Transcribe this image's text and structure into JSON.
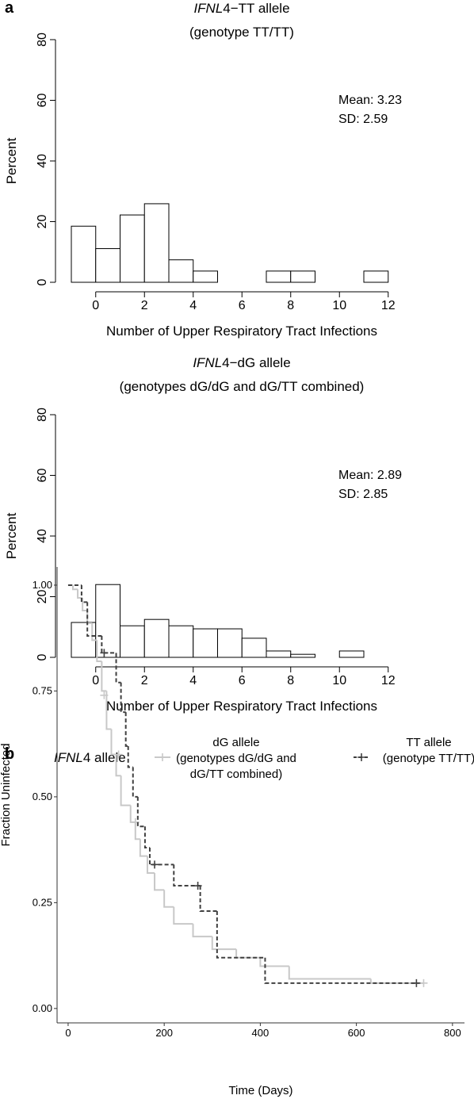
{
  "chart_data": [
    {
      "type": "histogram",
      "panel_label": "a",
      "title_italic": "IFNL",
      "title": "4−TT allele",
      "subtitle": "(genotype TT/TT)",
      "xlabel": "Number of Upper Respiratory Tract Infections",
      "ylabel": "Percent",
      "bins": [
        -1,
        0,
        1,
        2,
        3,
        4,
        5,
        6,
        7,
        8,
        9,
        10,
        11,
        12
      ],
      "values": [
        18.5,
        11.1,
        22.2,
        25.9,
        7.4,
        3.7,
        0,
        0,
        3.7,
        3.7,
        0,
        0,
        3.7
      ],
      "xlim": [
        -1,
        13
      ],
      "xticks": [
        0,
        2,
        4,
        6,
        8,
        10,
        12
      ],
      "ylim": [
        0,
        80
      ],
      "yticks": [
        0,
        20,
        40,
        60,
        80
      ],
      "annotations": [
        "Mean: 3.23",
        "SD: 2.59"
      ],
      "color": "#ffffff"
    },
    {
      "type": "histogram",
      "title_italic": "IFNL",
      "title": "4−dG allele",
      "subtitle": "(genotypes dG/dG and dG/TT combined)",
      "xlabel": "Number of Upper Respiratory Tract Infections",
      "ylabel": "Percent",
      "bins": [
        -1,
        0,
        1,
        2,
        3,
        4,
        5,
        6,
        7,
        8,
        9,
        10,
        11,
        12
      ],
      "values": [
        11.5,
        24.0,
        10.4,
        12.5,
        10.4,
        9.4,
        9.4,
        6.3,
        2.1,
        1.0,
        0,
        2.1,
        0
      ],
      "xlim": [
        -1,
        13
      ],
      "xticks": [
        0,
        2,
        4,
        6,
        8,
        10,
        12
      ],
      "ylim": [
        0,
        80
      ],
      "yticks": [
        0,
        20,
        40,
        60,
        80
      ],
      "annotations": [
        "Mean: 2.89",
        "SD: 2.85"
      ],
      "color": "#ffffff"
    },
    {
      "type": "step",
      "panel_label": "b",
      "legend_title_italic": "IFNL",
      "legend_title": "4 allele",
      "xlabel": "Time (Days)",
      "ylabel": "Fraction Uninfected",
      "xlim": [
        -23,
        825
      ],
      "xticks": [
        0,
        200,
        400,
        600,
        800
      ],
      "ylim": [
        -0.034,
        1.043
      ],
      "yticks": [
        {
          "value": 0,
          "label": "0.00"
        },
        {
          "value": 0.25,
          "label": "0.25"
        },
        {
          "value": 0.5,
          "label": "0.50"
        },
        {
          "value": 0.75,
          "label": "0.75"
        },
        {
          "value": 1,
          "label": "1.00"
        }
      ],
      "series": [
        {
          "name": [
            "dG allele",
            "(genotypes dG/dG and",
            "dG/TT combined)"
          ],
          "color": "#c8c8c8",
          "dashed": false,
          "x": [
            0,
            10,
            20,
            30,
            40,
            50,
            60,
            70,
            80,
            90,
            100,
            110,
            130,
            140,
            150,
            165,
            180,
            200,
            220,
            260,
            300,
            350,
            400,
            460,
            630,
            740
          ],
          "values": [
            1,
            0.99,
            0.97,
            0.94,
            0.91,
            0.87,
            0.82,
            0.75,
            0.66,
            0.6,
            0.55,
            0.48,
            0.44,
            0.4,
            0.36,
            0.32,
            0.28,
            0.24,
            0.2,
            0.17,
            0.14,
            0.12,
            0.1,
            0.07,
            0.06,
            0.06
          ],
          "censored": {
            "x": [
              75,
              105,
              140,
              740
            ],
            "values": [
              0.74,
              0.6,
              0.44,
              0.06
            ]
          }
        },
        {
          "name": [
            "TT allele",
            "(genotype TT/TT)"
          ],
          "color": "#404040",
          "dashed": true,
          "x": [
            0,
            28,
            40,
            70,
            100,
            110,
            120,
            125,
            135,
            145,
            160,
            170,
            220,
            275,
            310,
            410,
            730
          ],
          "values": [
            1,
            0.96,
            0.88,
            0.84,
            0.77,
            0.7,
            0.62,
            0.57,
            0.5,
            0.43,
            0.38,
            0.34,
            0.29,
            0.23,
            0.12,
            0.06,
            0.06
          ],
          "censored": {
            "x": [
              75,
              180,
              270,
              725
            ],
            "values": [
              0.84,
              0.34,
              0.29,
              0.06
            ]
          }
        }
      ]
    }
  ]
}
